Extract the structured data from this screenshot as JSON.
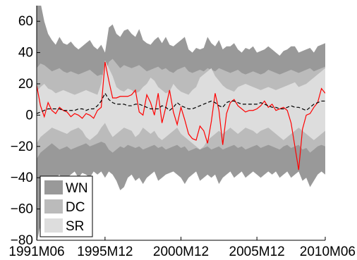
{
  "chart_data": {
    "type": "area",
    "xlim": [
      0,
      76
    ],
    "ylim": [
      -80,
      70
    ],
    "x_ticks": [
      {
        "x": 0,
        "label": "1991M06"
      },
      {
        "x": 18,
        "label": "1995M12"
      },
      {
        "x": 38,
        "label": "2000M12"
      },
      {
        "x": 58,
        "label": "2005M12"
      },
      {
        "x": 76,
        "label": "2010M06"
      }
    ],
    "y_ticks": [
      {
        "y": -80,
        "label": "−80"
      },
      {
        "y": -60,
        "label": "−60"
      },
      {
        "y": -40,
        "label": "−40"
      },
      {
        "y": -20,
        "label": "−20"
      },
      {
        "y": 0,
        "label": "0"
      },
      {
        "y": 20,
        "label": "20"
      },
      {
        "y": 40,
        "label": "40"
      },
      {
        "y": 60,
        "label": "60"
      }
    ],
    "x": [
      0,
      1,
      2,
      3,
      4,
      5,
      6,
      7,
      8,
      9,
      10,
      11,
      12,
      13,
      14,
      15,
      16,
      17,
      18,
      19,
      20,
      21,
      22,
      23,
      24,
      25,
      26,
      27,
      28,
      29,
      30,
      31,
      32,
      33,
      34,
      35,
      36,
      37,
      38,
      39,
      40,
      41,
      42,
      43,
      44,
      45,
      46,
      47,
      48,
      49,
      50,
      51,
      52,
      53,
      54,
      55,
      56,
      57,
      58,
      59,
      60,
      61,
      62,
      63,
      64,
      65,
      66,
      67,
      68,
      69,
      70,
      71,
      72,
      73,
      74,
      75,
      76
    ],
    "bands": [
      {
        "name": "WN",
        "color": "#999999",
        "upper": [
          70,
          72,
          60,
          52,
          48,
          45,
          50,
          46,
          45,
          47,
          44,
          42,
          44,
          46,
          48,
          44,
          42,
          45,
          40,
          56,
          58,
          52,
          50,
          54,
          55,
          52,
          50,
          55,
          48,
          46,
          45,
          48,
          50,
          46,
          50,
          45,
          44,
          46,
          48,
          50,
          42,
          40,
          43,
          42,
          43,
          50,
          46,
          44,
          48,
          42,
          44,
          44,
          46,
          42,
          40,
          43,
          42,
          44,
          40,
          41,
          42,
          44,
          42,
          40,
          38,
          41,
          42,
          44,
          44,
          40,
          41,
          42,
          43,
          40,
          44,
          45,
          46
        ],
        "lower": [
          -82,
          -70,
          -58,
          -48,
          -44,
          -40,
          -38,
          -42,
          -40,
          -38,
          -36,
          -40,
          -37,
          -38,
          -40,
          -36,
          -38,
          -36,
          -40,
          -36,
          -38,
          -42,
          -48,
          -46,
          -40,
          -38,
          -42,
          -40,
          -44,
          -40,
          -38,
          -36,
          -42,
          -40,
          -38,
          -37,
          -36,
          -38,
          -40,
          -44,
          -40,
          -38,
          -36,
          -42,
          -40,
          -38,
          -40,
          -38,
          -44,
          -40,
          -38,
          -36,
          -40,
          -38,
          -36,
          -40,
          -38,
          -36,
          -38,
          -40,
          -38,
          -36,
          -38,
          -36,
          -40,
          -38,
          -36,
          -40,
          -38,
          -36,
          -42,
          -40,
          -46,
          -42,
          -38,
          -36,
          -38
        ]
      },
      {
        "name": "DC",
        "color": "#bbbbbb",
        "upper": [
          30,
          33,
          32,
          30,
          28,
          29,
          30,
          28,
          27,
          28,
          27,
          26,
          27,
          28,
          29,
          27,
          25,
          26,
          24,
          34,
          36,
          33,
          30,
          32,
          31,
          30,
          31,
          32,
          30,
          28,
          29,
          30,
          31,
          29,
          30,
          28,
          27,
          29,
          30,
          31,
          28,
          27,
          28,
          29,
          28,
          30,
          29,
          28,
          30,
          29,
          28,
          27,
          28,
          29,
          27,
          26,
          27,
          28,
          27,
          26,
          27,
          29,
          28,
          27,
          26,
          27,
          28,
          29,
          28,
          27,
          28,
          29,
          30,
          28,
          29,
          30,
          31
        ],
        "lower": [
          -28,
          -24,
          -22,
          -20,
          -18,
          -20,
          -22,
          -21,
          -20,
          -22,
          -21,
          -20,
          -19,
          -18,
          -20,
          -19,
          -18,
          -17,
          -18,
          -22,
          -24,
          -22,
          -20,
          -21,
          -19,
          -20,
          -21,
          -20,
          -22,
          -21,
          -20,
          -19,
          -21,
          -20,
          -22,
          -21,
          -20,
          -19,
          -21,
          -20,
          -23,
          -22,
          -21,
          -22,
          -21,
          -20,
          -22,
          -21,
          -20,
          -22,
          -21,
          -20,
          -19,
          -21,
          -20,
          -22,
          -21,
          -20,
          -19,
          -21,
          -20,
          -19,
          -20,
          -21,
          -22,
          -20,
          -19,
          -21,
          -20,
          -19,
          -22,
          -21,
          -24,
          -22,
          -20,
          -19,
          -20
        ]
      },
      {
        "name": "SR",
        "color": "#dddddd",
        "upper": [
          15,
          18,
          20,
          17,
          16,
          14,
          15,
          16,
          15,
          14,
          13,
          14,
          15,
          16,
          15,
          14,
          13,
          20,
          35,
          30,
          25,
          18,
          16,
          15,
          17,
          16,
          14,
          15,
          18,
          20,
          24,
          22,
          18,
          16,
          14,
          15,
          20,
          17,
          15,
          14,
          13,
          16,
          18,
          24,
          26,
          28,
          30,
          25,
          22,
          19,
          17,
          16,
          15,
          18,
          19,
          20,
          19,
          18,
          17,
          16,
          17,
          18,
          17,
          16,
          17,
          18,
          19,
          20,
          21,
          18,
          19,
          20,
          22,
          24,
          26,
          28,
          30
        ],
        "lower": [
          -18,
          -14,
          -12,
          -10,
          -8,
          -9,
          -10,
          -11,
          -12,
          -10,
          -9,
          -8,
          -10,
          -14,
          -16,
          -14,
          -12,
          -8,
          -5,
          -10,
          -14,
          -12,
          -10,
          -8,
          -9,
          -10,
          -14,
          -12,
          -8,
          -10,
          -12,
          -10,
          -14,
          -16,
          -14,
          -12,
          -10,
          -8,
          -12,
          -14,
          -16,
          -18,
          -20,
          -22,
          -20,
          -16,
          -14,
          -12,
          -10,
          -12,
          -10,
          -8,
          -10,
          -12,
          -10,
          -8,
          -9,
          -10,
          -12,
          -10,
          -9,
          -8,
          -10,
          -12,
          -14,
          -16,
          -14,
          -12,
          -10,
          -8,
          -10,
          -12,
          -14,
          -16,
          -14,
          -12,
          -10
        ]
      }
    ],
    "series": [
      {
        "type": "line",
        "color": "#ff0000",
        "values": [
          19,
          6,
          -1,
          8,
          3,
          1,
          5,
          3,
          2,
          -1,
          1,
          0,
          -2,
          1,
          0,
          -2,
          3,
          5,
          34,
          22,
          11,
          11,
          12,
          12,
          12,
          13,
          16,
          2,
          0,
          13,
          8,
          0,
          14,
          -5,
          5,
          16,
          2,
          -6,
          5,
          -3,
          -12,
          -15,
          -16,
          -7,
          -10,
          -18,
          -4,
          14,
          3,
          -19,
          1,
          8,
          10,
          6,
          4,
          2,
          3,
          3,
          4,
          6,
          9,
          5,
          7,
          3,
          4,
          5,
          3,
          -5,
          -20,
          -35,
          -9,
          0,
          1,
          5,
          8,
          17,
          14
        ],
        "dash": "solid"
      },
      {
        "type": "line",
        "color": "#000000",
        "values": [
          1,
          2,
          3,
          4,
          4,
          4,
          4,
          3,
          3,
          3,
          3,
          4,
          4,
          3,
          4,
          4,
          6,
          9,
          14,
          10,
          8,
          7,
          7,
          7,
          6,
          6,
          7,
          7,
          6,
          5,
          4,
          4,
          4,
          6,
          5,
          3,
          5,
          8,
          6,
          5,
          4,
          4,
          5,
          6,
          7,
          8,
          9,
          8,
          6,
          5,
          8,
          9,
          9,
          8,
          7,
          7,
          7,
          7,
          7,
          8,
          7,
          6,
          5,
          5,
          4,
          4,
          5,
          6,
          5,
          5,
          4,
          3,
          5,
          7,
          8,
          9,
          9
        ],
        "dash": "dashed"
      }
    ],
    "legend": {
      "position": "bottom-left",
      "entries": [
        {
          "label": "WN",
          "color": "#999999"
        },
        {
          "label": "DC",
          "color": "#bbbbbb"
        },
        {
          "label": "SR",
          "color": "#dddddd"
        }
      ]
    },
    "grid": false
  }
}
